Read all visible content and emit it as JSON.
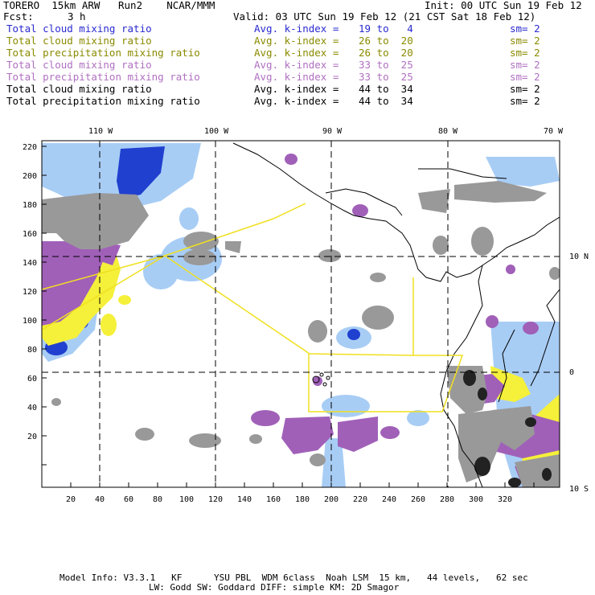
{
  "header": {
    "title_left": "TORERO  15km ARW   Run2    NCAR/MMM",
    "init": "Init: 00 UTC Sun 19 Feb 12",
    "fcst_label": "Fcst:",
    "fcst_value": "3 h",
    "valid": "Valid: 03 UTC Sun 19 Feb 12 (21 CST Sat 18 Feb 12)"
  },
  "legend": [
    {
      "field": "Total cloud mixing ratio",
      "index": "Avg. k-index =",
      "range": "19 to   4",
      "sm": "sm= 2",
      "color": "#2a2ad0"
    },
    {
      "field": "Total cloud mixing ratio",
      "index": "Avg. k-index =",
      "range": "26 to  20",
      "sm": "sm= 2",
      "color": "#8a8a00"
    },
    {
      "field": "Total precipitation mixing ratio",
      "index": "Avg. k-index =",
      "range": "26 to  20",
      "sm": "sm= 2",
      "color": "#8a8a00"
    },
    {
      "field": "Total cloud mixing ratio",
      "index": "Avg. k-index =",
      "range": "33 to  25",
      "sm": "sm= 2",
      "color": "#b070c0"
    },
    {
      "field": "Total precipitation mixing ratio",
      "index": "Avg. k-index =",
      "range": "33 to  25",
      "sm": "sm= 2",
      "color": "#b070c0"
    },
    {
      "field": "Total cloud mixing ratio",
      "index": "Avg. k-index =",
      "range": "44 to  34",
      "sm": "sm= 2",
      "color": "#000000"
    },
    {
      "field": "Total precipitation mixing ratio",
      "index": "Avg. k-index =",
      "range": "44 to  34",
      "sm": "sm= 2",
      "color": "#000000"
    }
  ],
  "map": {
    "lon_labels": [
      "110 W",
      "100 W",
      "90 W",
      "80 W",
      "70 W"
    ],
    "lat_labels": [
      "10 N",
      "0",
      "10 S"
    ],
    "x_ticks": [
      "20",
      "40",
      "60",
      "80",
      "100",
      "120",
      "140",
      "160",
      "180",
      "200",
      "220",
      "240",
      "260",
      "280",
      "300",
      "320"
    ],
    "y_ticks": [
      "220",
      "200",
      "180",
      "160",
      "140",
      "120",
      "100",
      "80",
      "60",
      "40",
      "20"
    ],
    "colors": {
      "blue_cloud": "#a8cdf5",
      "blue_dark": "#2040d0",
      "yellow": "#f5f03a",
      "purple": "#a060b8",
      "gray": "#999999",
      "box_line": "#f0e020"
    }
  },
  "footer": {
    "line1": "Model Info: V3.3.1   KF      YSU PBL  WDM 6class  Noah LSM  15 km,   44 levels,   62 sec",
    "line2": "LW: Godd SW: Goddard DIFF: simple KM: 2D Smagor"
  }
}
